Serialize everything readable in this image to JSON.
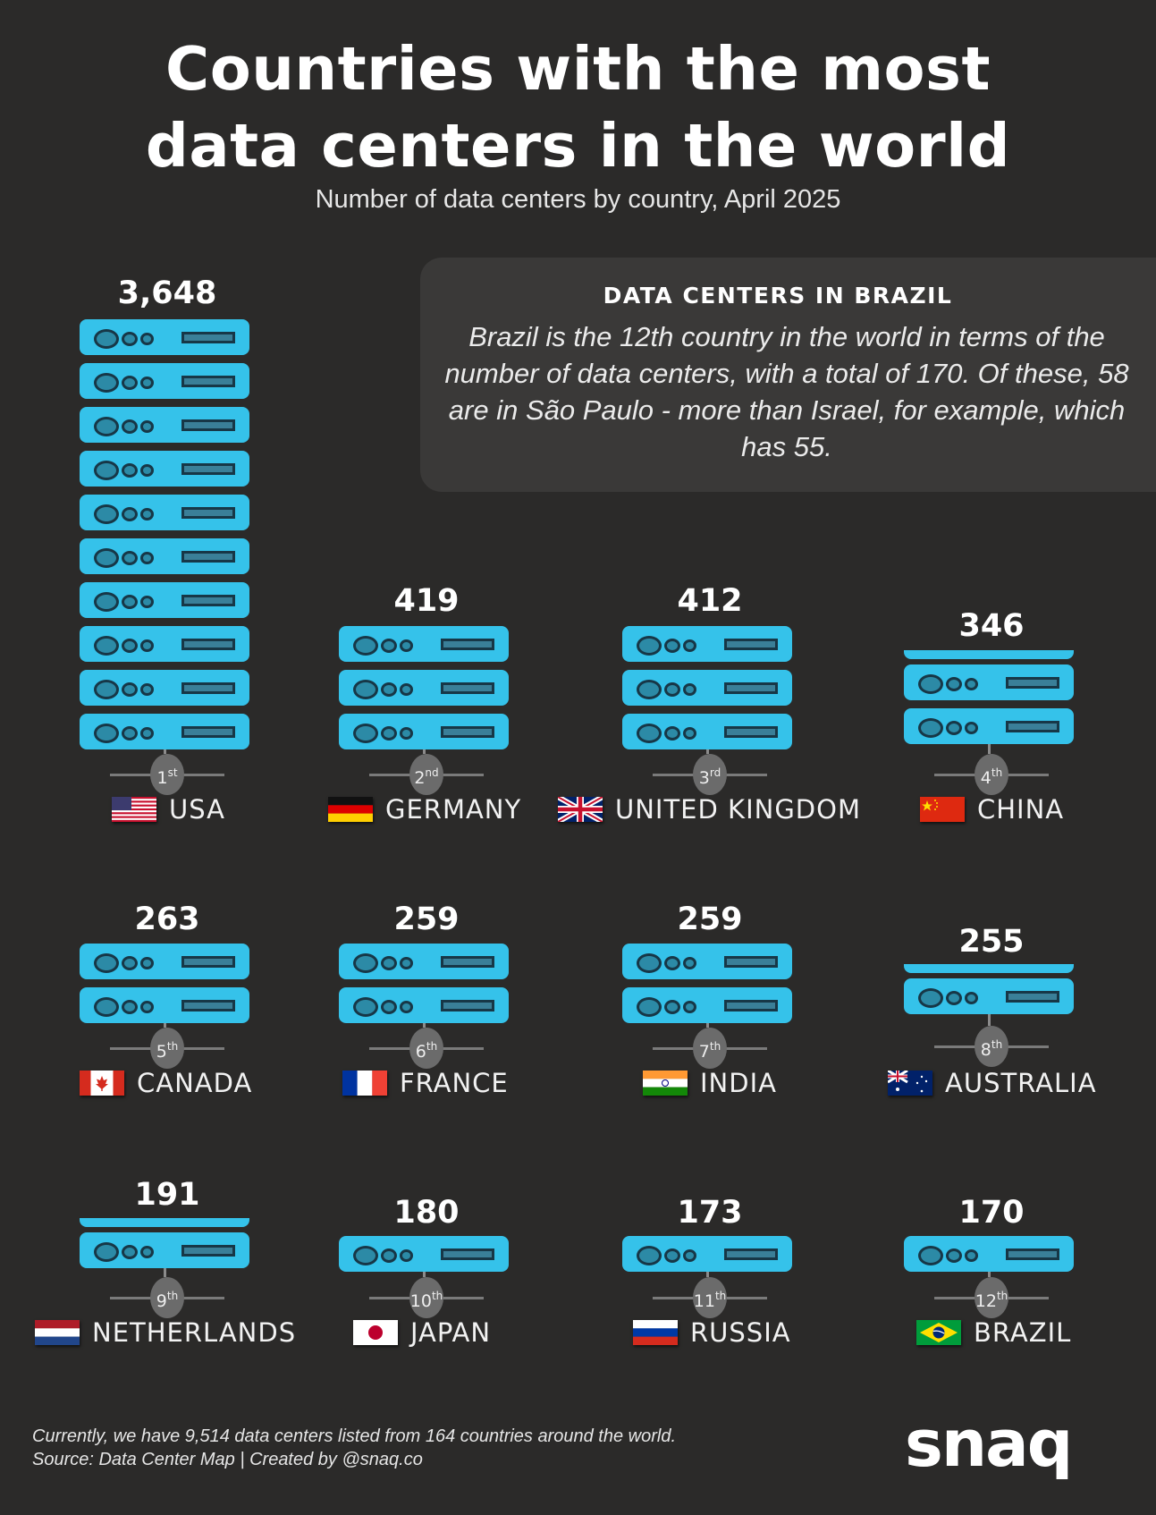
{
  "header": {
    "title_line1": "Countries with the most",
    "title_line2": "data centers in the world",
    "subtitle": "Number of data centers by country, April 2025"
  },
  "callout": {
    "heading": "DATA CENTERS IN BRAZIL",
    "body": "Brazil is the 12th country in the world in terms of the number of data centers, with a total of 170. Of these, 58 are in São Paulo - more than Israel, for example, which has 55."
  },
  "colors": {
    "background": "#2b2a29",
    "server": "#35c2ea",
    "rank_badge": "#6b6b6b"
  },
  "countries": [
    {
      "rank": "1",
      "suffix": "st",
      "name": "USA",
      "value": "3,648",
      "flag": "usa-flag-icon"
    },
    {
      "rank": "2",
      "suffix": "nd",
      "name": "GERMANY",
      "value": "419",
      "flag": "germany-flag-icon"
    },
    {
      "rank": "3",
      "suffix": "rd",
      "name": "UNITED KINGDOM",
      "value": "412",
      "flag": "uk-flag-icon"
    },
    {
      "rank": "4",
      "suffix": "th",
      "name": "CHINA",
      "value": "346",
      "flag": "china-flag-icon"
    },
    {
      "rank": "5",
      "suffix": "th",
      "name": "CANADA",
      "value": "263",
      "flag": "canada-flag-icon"
    },
    {
      "rank": "6",
      "suffix": "th",
      "name": "FRANCE",
      "value": "259",
      "flag": "france-flag-icon"
    },
    {
      "rank": "7",
      "suffix": "th",
      "name": "INDIA",
      "value": "259",
      "flag": "india-flag-icon"
    },
    {
      "rank": "8",
      "suffix": "th",
      "name": "AUSTRALIA",
      "value": "255",
      "flag": "australia-flag-icon"
    },
    {
      "rank": "9",
      "suffix": "th",
      "name": "NETHERLANDS",
      "value": "191",
      "flag": "netherlands-flag-icon"
    },
    {
      "rank": "10",
      "suffix": "th",
      "name": "JAPAN",
      "value": "180",
      "flag": "japan-flag-icon"
    },
    {
      "rank": "11",
      "suffix": "th",
      "name": "RUSSIA",
      "value": "173",
      "flag": "russia-flag-icon"
    },
    {
      "rank": "12",
      "suffix": "th",
      "name": "BRAZIL",
      "value": "170",
      "flag": "brazil-flag-icon"
    }
  ],
  "footer": {
    "line1": "Currently, we have 9,514 data centers listed from 164 countries around the world.",
    "line2": "Source: Data Center Map | Created by @snaq.co",
    "logo": "snaq"
  },
  "chart_data": {
    "type": "bar",
    "title": "Countries with the most data centers in the world",
    "subtitle": "Number of data centers by country, April 2025",
    "categories": [
      "USA",
      "Germany",
      "United Kingdom",
      "China",
      "Canada",
      "France",
      "India",
      "Australia",
      "Netherlands",
      "Japan",
      "Russia",
      "Brazil"
    ],
    "values": [
      3648,
      419,
      412,
      346,
      263,
      259,
      259,
      255,
      191,
      180,
      173,
      170
    ],
    "ranks": [
      1,
      2,
      3,
      4,
      5,
      6,
      7,
      8,
      9,
      10,
      11,
      12
    ],
    "xlabel": "",
    "ylabel": "Number of data centers",
    "annotations": [
      "DATA CENTERS IN BRAZIL: Brazil is the 12th country in the world in terms of the number of data centers, with a total of 170. Of these, 58 are in São Paulo - more than Israel, for example, which has 55.",
      "Currently, we have 9,514 data centers listed from 164 countries around the world.",
      "Source: Data Center Map | Created by @snaq.co"
    ]
  }
}
